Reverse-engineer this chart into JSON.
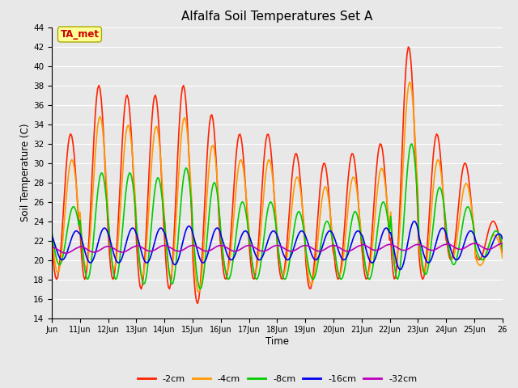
{
  "title": "Alfalfa Soil Temperatures Set A",
  "xlabel": "Time",
  "ylabel": "Soil Temperature (C)",
  "ylim": [
    14,
    44
  ],
  "yticks": [
    14,
    16,
    18,
    20,
    22,
    24,
    26,
    28,
    30,
    32,
    34,
    36,
    38,
    40,
    42,
    44
  ],
  "xtick_labels": [
    "Jun",
    "11Jun",
    "12Jun",
    "13Jun",
    "14Jun",
    "15Jun",
    "16Jun",
    "17Jun",
    "18Jun",
    "19Jun",
    "20Jun",
    "21Jun",
    "22Jun",
    "23Jun",
    "24Jun",
    "25Jun",
    "26"
  ],
  "colors": {
    "-2cm": "#ff2200",
    "-4cm": "#ff9900",
    "-8cm": "#00cc00",
    "-16cm": "#0000ee",
    "-32cm": "#bb00bb"
  },
  "annotation_text": "TA_met",
  "annotation_color": "#cc0000",
  "annotation_bg": "#ffff99",
  "annotation_edge": "#aaaa00",
  "plot_bg": "#e8e8e8",
  "fig_bg": "#e8e8e8",
  "grid_color": "#ffffff",
  "linewidth": 1.2
}
